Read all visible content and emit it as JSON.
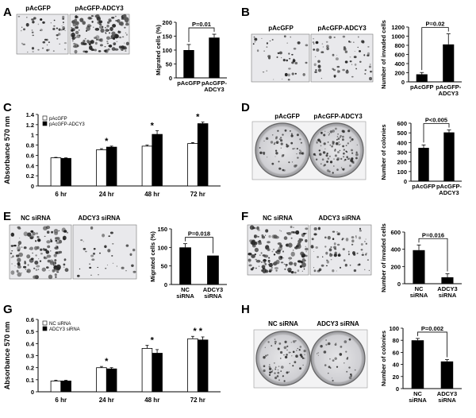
{
  "panels": {
    "A": {
      "letter": "A",
      "img_labels": [
        "pAcGFP",
        "pAcGFP-ADCY3"
      ]
    },
    "B": {
      "letter": "B",
      "img_labels": [
        "pAcGFP",
        "pAcGFP-ADCY3"
      ]
    },
    "C": {
      "letter": "C"
    },
    "D": {
      "letter": "D",
      "img_labels": [
        "pAcGFP",
        "pAcGFP-ADCY3"
      ]
    },
    "E": {
      "letter": "E",
      "img_labels": [
        "NC siRNA",
        "ADCY3  siRNA"
      ]
    },
    "F": {
      "letter": "F",
      "img_labels": [
        "NC siRNA",
        "ADCY3 siRNA"
      ]
    },
    "G": {
      "letter": "G"
    },
    "H": {
      "letter": "H",
      "img_labels": [
        "NC siRNA",
        "ADCY3  siRNA"
      ]
    }
  },
  "colors": {
    "bar": "#000000",
    "open_bar": "#ffffff",
    "photo_bg": "#e9e9ec",
    "dish_bg": "#d9d9dc"
  },
  "chart_data": [
    {
      "id": "A",
      "type": "bar",
      "categories": [
        "pAcGFP",
        "pAcGFP-ADCY3"
      ],
      "category_lines": [
        [
          "pAcGFP"
        ],
        [
          "pAcGFP-",
          "ADCY3"
        ]
      ],
      "values": [
        100,
        145
      ],
      "errors": [
        20,
        12
      ],
      "ylim": [
        0,
        200
      ],
      "yticks": [
        0,
        50,
        100,
        150,
        200
      ],
      "ylabel": "Migrated cells (%)",
      "annotation": "P=0.01"
    },
    {
      "id": "B",
      "type": "bar",
      "categories": [
        "pAcGFP",
        "pAcGFP-ADCY3"
      ],
      "category_lines": [
        [
          "pAcGFP"
        ],
        [
          "pAcGFP-",
          "ADCY3"
        ]
      ],
      "values": [
        165,
        820
      ],
      "errors": [
        40,
        230
      ],
      "ylim": [
        0,
        1200
      ],
      "yticks": [
        0,
        200,
        400,
        600,
        800,
        1000,
        1200
      ],
      "ylabel": "Number of invaded cells",
      "annotation": "P=0.02"
    },
    {
      "id": "C",
      "type": "bar",
      "categories": [
        "6 hr",
        "24 hr",
        "48 hr",
        "72 hr"
      ],
      "series": [
        {
          "name": "pAcGFP",
          "values": [
            0.55,
            0.71,
            0.78,
            0.83
          ],
          "errors": [
            0.01,
            0.02,
            0.02,
            0.02
          ],
          "fill": "open"
        },
        {
          "name": "pAcGFP-ADCY3",
          "values": [
            0.54,
            0.76,
            1.01,
            1.22
          ],
          "errors": [
            0.01,
            0.02,
            0.07,
            0.03
          ],
          "fill": "solid"
        }
      ],
      "ylim": [
        0,
        1.4
      ],
      "yticks": [
        0,
        0.2,
        0.4,
        0.6,
        0.8,
        1.0,
        1.2,
        1.4
      ],
      "ytick_labels": [
        "0",
        "0.2",
        "0.4",
        "0.6",
        "0.8",
        "1",
        "1.2",
        "1.4"
      ],
      "ylabel": "Absorbance 570 nm",
      "stars": [
        "",
        "*",
        "*",
        "*"
      ],
      "legend": "top-left"
    },
    {
      "id": "D",
      "type": "bar",
      "categories": [
        "pAcGFP",
        "pAcGFP-ADCY3"
      ],
      "category_lines": [
        [
          "pAcGFP"
        ],
        [
          "pAcGFP-",
          "ADCY3"
        ]
      ],
      "values": [
        345,
        505
      ],
      "errors": [
        30,
        25
      ],
      "ylim": [
        0,
        600
      ],
      "yticks": [
        0,
        100,
        200,
        300,
        400,
        500,
        600
      ],
      "ylabel": "Number of colonies",
      "annotation": "P<0.005"
    },
    {
      "id": "E",
      "type": "bar",
      "categories": [
        "NC siRNA",
        "ADCY3 siRNA"
      ],
      "category_lines": [
        [
          "NC",
          "siRNA"
        ],
        [
          "ADCY3",
          "siRNA"
        ]
      ],
      "values": [
        100,
        78
      ],
      "errors": [
        10,
        0
      ],
      "ylim": [
        0,
        150
      ],
      "yticks": [
        0,
        50,
        100,
        150
      ],
      "ylabel": "Migrated cells (%)",
      "annotation": "P=0.018"
    },
    {
      "id": "F",
      "type": "bar",
      "categories": [
        "NC siRNA",
        "ADCY3 siRNA"
      ],
      "category_lines": [
        [
          "NC",
          "siRNA"
        ],
        [
          "ADCY3",
          "siRNA"
        ]
      ],
      "values": [
        390,
        75
      ],
      "errors": [
        60,
        40
      ],
      "ylim": [
        0,
        600
      ],
      "yticks": [
        0,
        200,
        400,
        600
      ],
      "ylabel": "Number of invaded cells",
      "annotation": "P=0.016"
    },
    {
      "id": "G",
      "type": "bar",
      "categories": [
        "6 hr",
        "24 hr",
        "48 hr",
        "72 hr"
      ],
      "series": [
        {
          "name": "NC siRNA",
          "values": [
            0.09,
            0.2,
            0.36,
            0.44
          ],
          "errors": [
            0.005,
            0.01,
            0.025,
            0.02
          ],
          "fill": "open"
        },
        {
          "name": "ADCY3 siRNA",
          "values": [
            0.09,
            0.19,
            0.32,
            0.43
          ],
          "errors": [
            0.005,
            0.01,
            0.03,
            0.025
          ],
          "fill": "solid"
        }
      ],
      "ylim": [
        0,
        0.6
      ],
      "yticks": [
        0,
        0.1,
        0.2,
        0.3,
        0.4,
        0.5,
        0.6
      ],
      "ytick_labels": [
        "0",
        "0.1",
        "0.2",
        "0.3",
        "0.4",
        "0.5",
        "0.6"
      ],
      "ylabel": "Absorbance 570 nm",
      "stars": [
        "",
        "*",
        "*",
        "* *"
      ],
      "legend": "top-left"
    },
    {
      "id": "H",
      "type": "bar",
      "categories": [
        "NC siRNA",
        "ADCY3 siRNA"
      ],
      "category_lines": [
        [
          "NC",
          "siRNA"
        ],
        [
          "ADCY3",
          "siRNA"
        ]
      ],
      "values": [
        80,
        45
      ],
      "errors": [
        3,
        3
      ],
      "ylim": [
        0,
        100
      ],
      "yticks": [
        0,
        20,
        40,
        60,
        80,
        100
      ],
      "ylabel": "Number of colonies",
      "annotation": "P=0.002"
    }
  ]
}
